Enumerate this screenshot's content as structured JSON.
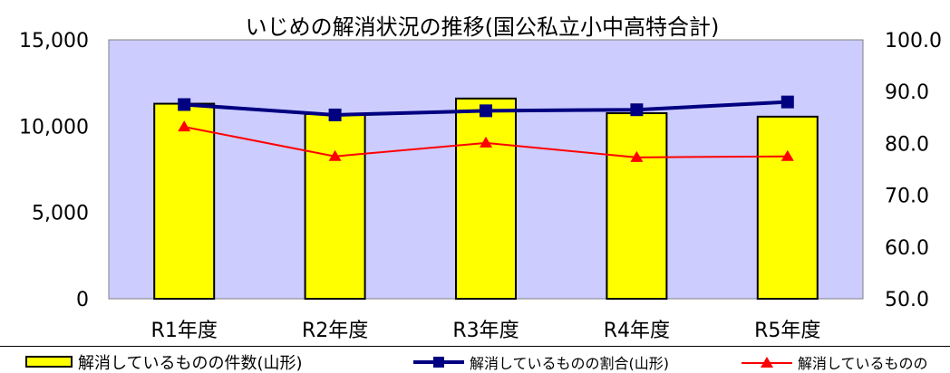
{
  "chart_data": {
    "type": "bar",
    "title": "いじめの解消状況の推移(国公私立小中高特合計)",
    "categories": [
      "R1年度",
      "R2年度",
      "R3年度",
      "R4年度",
      "R5年度"
    ],
    "y_left": {
      "min": 0,
      "max": 15000,
      "ticks": [
        "0",
        "5,000",
        "10,000",
        "15,000"
      ],
      "tick_values": [
        0,
        5000,
        10000,
        15000
      ]
    },
    "y_right": {
      "min": 50,
      "max": 100,
      "ticks": [
        "50.0",
        "60.0",
        "70.0",
        "80.0",
        "90.0",
        "100.0"
      ],
      "tick_values": [
        50,
        60,
        70,
        80,
        90,
        100
      ]
    },
    "series": [
      {
        "name": "解消しているものの件数(山形)",
        "type": "bar",
        "axis": "left",
        "color": "#ffff00",
        "values": [
          11300,
          10700,
          11600,
          10750,
          10550
        ]
      },
      {
        "name": "解消しているものの割合(山形)",
        "type": "line",
        "axis": "right",
        "color": "#000080",
        "marker": "square",
        "values": [
          87.5,
          85.5,
          86.3,
          86.5,
          88.0
        ]
      },
      {
        "name": "解消しているものの",
        "type": "line",
        "axis": "right",
        "color": "#ff0000",
        "marker": "triangle",
        "values": [
          83.2,
          77.5,
          80.1,
          77.3,
          77.5
        ]
      }
    ],
    "plot_background": "#ccccff",
    "legend_position": "bottom"
  }
}
